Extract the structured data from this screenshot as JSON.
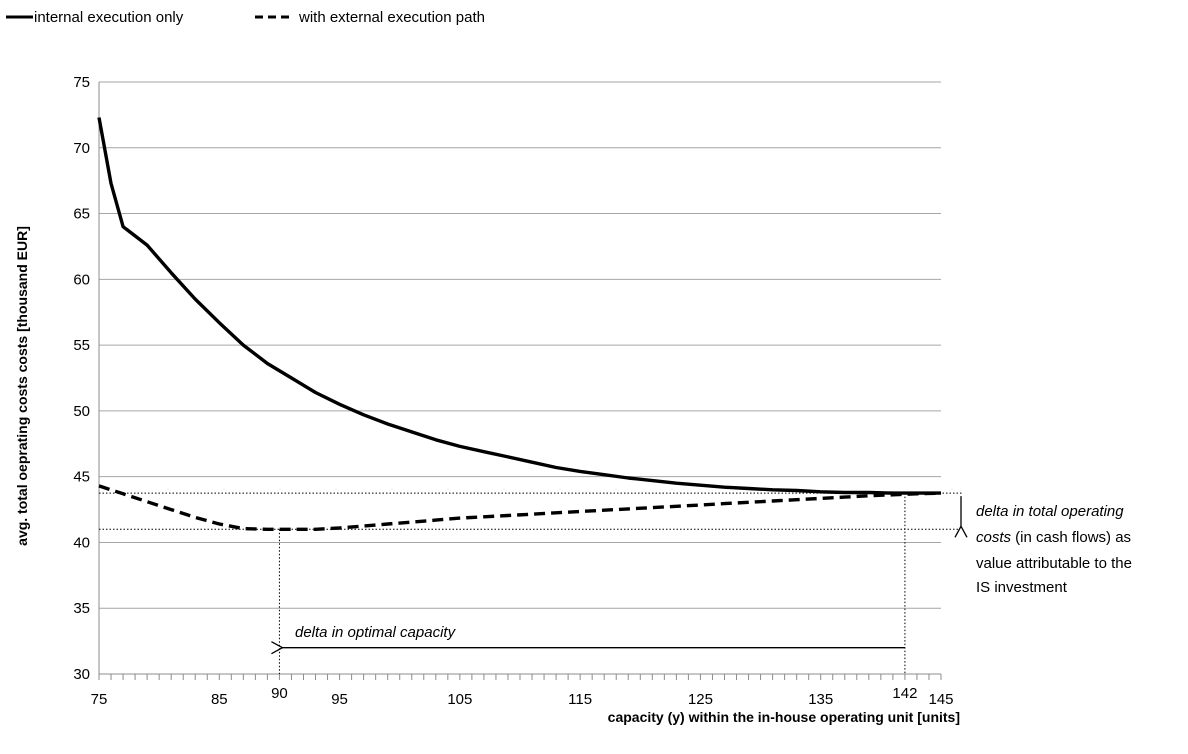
{
  "chart_data": {
    "type": "line",
    "xlabel": "capacity (y) within the in-house operating unit [units]",
    "ylabel": "avg. total oeprating costs costs [thousand EUR]",
    "xlim": [
      75,
      145
    ],
    "ylim": [
      30,
      75
    ],
    "x_ticks": [
      75,
      85,
      95,
      105,
      115,
      125,
      135,
      145
    ],
    "y_ticks": [
      30,
      35,
      40,
      45,
      50,
      55,
      60,
      65,
      70,
      75
    ],
    "grid": "horizontal",
    "legend_position": "top-left",
    "series": [
      {
        "name": "internal execution only",
        "style": "solid",
        "x": [
          75,
          76,
          77,
          79,
          81,
          83,
          85,
          87,
          89,
          91,
          93,
          95,
          97,
          99,
          101,
          103,
          105,
          107,
          109,
          111,
          113,
          115,
          117,
          119,
          121,
          123,
          125,
          127,
          129,
          131,
          133,
          135,
          137,
          139,
          141,
          143,
          145
        ],
        "y": [
          72.3,
          67.3,
          64.0,
          62.6,
          60.5,
          58.5,
          56.7,
          55.0,
          53.6,
          52.5,
          51.4,
          50.5,
          49.7,
          49.0,
          48.4,
          47.8,
          47.3,
          46.9,
          46.5,
          46.1,
          45.7,
          45.4,
          45.15,
          44.9,
          44.7,
          44.5,
          44.35,
          44.2,
          44.1,
          44.0,
          43.95,
          43.85,
          43.8,
          43.8,
          43.75,
          43.75,
          43.75
        ]
      },
      {
        "name": "with external execution path",
        "style": "dashed",
        "x": [
          75,
          77,
          79,
          81,
          83,
          85,
          87,
          89,
          90,
          91,
          93,
          95,
          97,
          99,
          101,
          103,
          105,
          107,
          109,
          111,
          113,
          115,
          117,
          119,
          121,
          123,
          125,
          127,
          129,
          131,
          133,
          135,
          137,
          139,
          141,
          143,
          145
        ],
        "y": [
          44.3,
          43.7,
          43.1,
          42.5,
          41.9,
          41.4,
          41.05,
          41.0,
          41.0,
          41.0,
          41.0,
          41.1,
          41.25,
          41.4,
          41.55,
          41.7,
          41.85,
          41.95,
          42.05,
          42.15,
          42.25,
          42.35,
          42.45,
          42.55,
          42.65,
          42.75,
          42.85,
          42.95,
          43.05,
          43.15,
          43.25,
          43.35,
          43.45,
          43.55,
          43.62,
          43.7,
          43.75
        ]
      }
    ],
    "annotations": {
      "extra_x_labels": [
        "90",
        "142"
      ],
      "optimal_capacity_with_external": 90,
      "optimal_capacity_internal": 142,
      "min_cost_with_external": 41.0,
      "min_cost_internal": 43.75,
      "capacity_arrow_label": "delta in optimal capacity",
      "cost_delta_label": {
        "line1_italic": "delta in total operating",
        "line2_italic": "costs",
        "line2_normal": " (in cash flows) as",
        "line3": "value attributable to the",
        "line4": "IS investment"
      }
    }
  }
}
